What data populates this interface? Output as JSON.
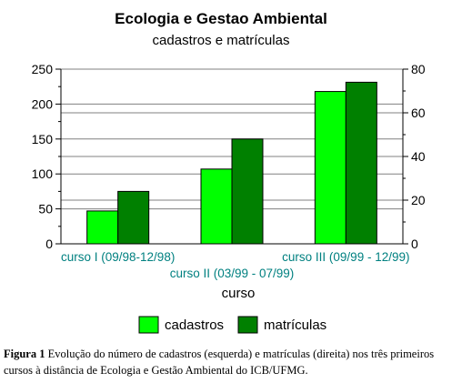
{
  "chart_data": {
    "type": "bar",
    "title": "Ecologia e Gestao Ambiental",
    "subtitle": "cadastros e matrículas",
    "xlabel": "curso",
    "categories": [
      "curso I (09/98-12/98)",
      "curso II (03/99 - 07/99)",
      "curso III (09/99 - 12/99)"
    ],
    "series": [
      {
        "name": "cadastros",
        "axis": "left",
        "color": "#00ff00",
        "values": [
          47,
          107,
          218
        ]
      },
      {
        "name": "matrículas",
        "axis": "right",
        "color": "#008000",
        "values": [
          24,
          48,
          74
        ]
      }
    ],
    "y_left": {
      "ylim": [
        0,
        250
      ],
      "ticks": [
        "0",
        "50",
        "100",
        "150",
        "200",
        "250"
      ]
    },
    "y_right": {
      "ylim": [
        0,
        80
      ],
      "ticks": [
        "0",
        "20",
        "40",
        "60",
        "80"
      ]
    },
    "grid": true,
    "legend": "bottom",
    "colors": {
      "category_labels": "#008080",
      "grid": "#808080"
    }
  },
  "caption": {
    "label": "Figura 1",
    "text": " Evolução do número de cadastros (esquerda) e matrículas (direita) nos três primeiros cursos à distância de Ecologia e Gestão Ambiental do ICB/UFMG."
  }
}
